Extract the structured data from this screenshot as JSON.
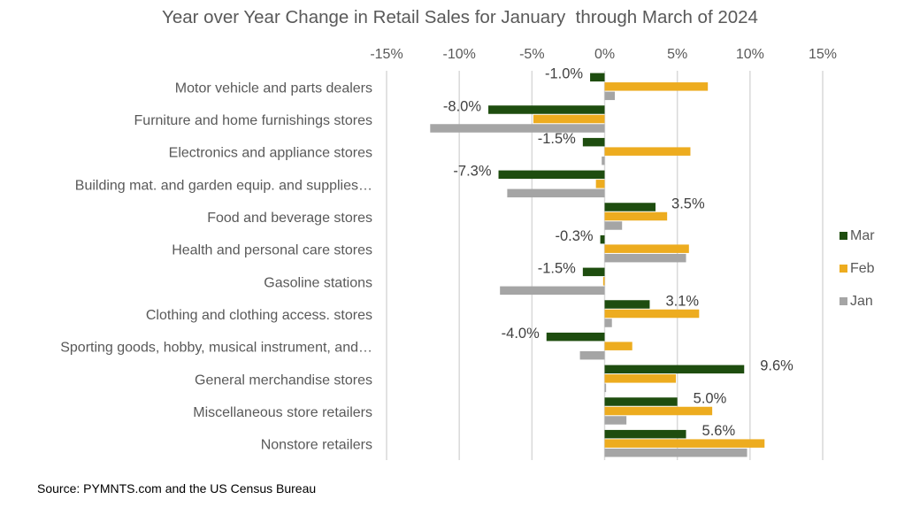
{
  "chart_data": {
    "type": "bar",
    "orientation": "horizontal",
    "title": "Year over Year Change in Retail Sales for January  through March of 2024",
    "xlabel": "",
    "ylabel": "",
    "xlim": [
      -15,
      15
    ],
    "x_ticks": [
      -15,
      -10,
      -5,
      0,
      5,
      10,
      15
    ],
    "x_tick_labels": [
      "-15%",
      "-10%",
      "-5%",
      "0%",
      "5%",
      "10%",
      "15%"
    ],
    "x_axis_position": "top",
    "grid": true,
    "legend_position": "right",
    "categories": [
      "Motor vehicle and parts dealers",
      "Furniture and home furnishings stores",
      "Electronics and appliance stores",
      "Building mat. and garden equip. and supplies…",
      "Food and beverage stores",
      "Health and personal care stores",
      "Gasoline stations",
      "Clothing and clothing access. stores",
      "Sporting goods, hobby, musical instrument, and…",
      "General merchandise stores",
      "Miscellaneous store retailers",
      "Nonstore retailers"
    ],
    "series": [
      {
        "name": "Mar",
        "color": "#1e4d0f",
        "values": [
          -1.0,
          -8.0,
          -1.5,
          -7.3,
          3.5,
          -0.3,
          -1.5,
          3.1,
          -4.0,
          9.6,
          5.0,
          5.6
        ],
        "data_labels": [
          "-1.0%",
          "-8.0%",
          "-1.5%",
          "-7.3%",
          "3.5%",
          "-0.3%",
          "-1.5%",
          "3.1%",
          "-4.0%",
          "9.6%",
          "5.0%",
          "5.6%"
        ]
      },
      {
        "name": "Feb",
        "color": "#edac1f",
        "values": [
          7.1,
          -4.9,
          5.9,
          -0.6,
          4.3,
          5.8,
          -0.1,
          6.5,
          1.9,
          4.9,
          7.4,
          11.0
        ]
      },
      {
        "name": "Jan",
        "color": "#a5a5a5",
        "values": [
          0.7,
          -12.0,
          -0.2,
          -6.7,
          1.2,
          5.6,
          -7.2,
          0.5,
          -1.7,
          0.1,
          1.5,
          9.8
        ]
      }
    ],
    "legend_order": [
      "Mar",
      "Feb",
      "Jan"
    ],
    "source": "Source: PYMNTS.com and the US Census Bureau"
  }
}
